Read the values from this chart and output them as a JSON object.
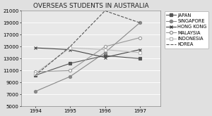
{
  "title": "OVERSEAS STUDENTS IN AUSTRALIA",
  "years": [
    1994,
    1995,
    1996,
    1997
  ],
  "series": {
    "JAPAN": {
      "values": [
        10200,
        12200,
        13500,
        13000
      ],
      "color": "#555555",
      "marker": "s",
      "linestyle": "-",
      "markerfc": "#555555"
    },
    "SINGAPORE": {
      "values": [
        7500,
        10000,
        14000,
        19000
      ],
      "color": "#888888",
      "marker": "o",
      "linestyle": "-",
      "markerfc": "#888888"
    },
    "HONG KONG": {
      "values": [
        14800,
        14500,
        13200,
        14500
      ],
      "color": "#444444",
      "marker": "x",
      "linestyle": "-",
      "markerfc": "#444444"
    },
    "MALAYSIA": {
      "values": [
        10800,
        11000,
        15000,
        16500
      ],
      "color": "#999999",
      "marker": "o",
      "linestyle": "-",
      "markerfc": "white"
    },
    "INDONESIA": {
      "values": [
        10500,
        14800,
        14500,
        14000
      ],
      "color": "#bbbbbb",
      "marker": "s",
      "linestyle": "-",
      "markerfc": "white"
    },
    "KOREA": {
      "values": [
        10200,
        15000,
        21000,
        19000
      ],
      "color": "#555555",
      "marker": "None",
      "linestyle": "--",
      "markerfc": "#555555"
    }
  },
  "ylim": [
    5000,
    21000
  ],
  "yticks": [
    5000,
    7000,
    9000,
    11000,
    13000,
    15000,
    17000,
    19000,
    21000
  ],
  "xlim": [
    1993.6,
    1997.6
  ],
  "bg_color": "#e0e0e0",
  "plot_bg": "#e8e8e8",
  "title_fontsize": 6.5,
  "tick_fontsize": 5.0,
  "legend_fontsize": 4.8
}
